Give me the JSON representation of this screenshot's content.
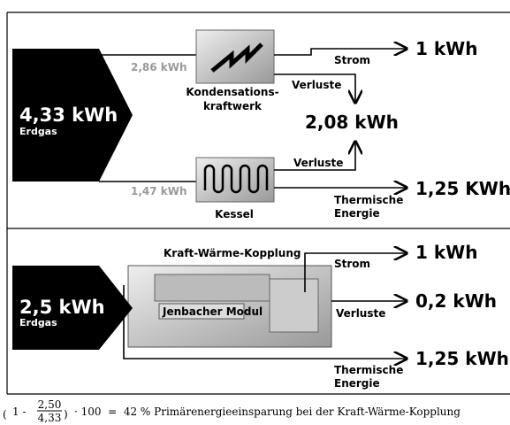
{
  "top": {
    "input": {
      "value": "4,33 kWh",
      "label": "Erdgas"
    },
    "plant": {
      "input": "2,86 kWh",
      "name": [
        "Kondensations-",
        "kraftwerk"
      ],
      "output_label": "Strom",
      "output": "1 kWh",
      "loss_label": "Verluste"
    },
    "losses_total": "2,08 kWh",
    "boiler": {
      "input": "1,47 kWh",
      "name": "Kessel",
      "loss_label": "Verluste",
      "output_label": [
        "Thermische",
        "Energie"
      ],
      "output": "1,25 KWh"
    }
  },
  "bottom": {
    "title": "Kraft-Wärme-Kopplung",
    "input": {
      "value": "2,5 kWh",
      "label": "Erdgas"
    },
    "module": "Jenbacher Modul",
    "outputs": [
      {
        "label": [
          "Strom"
        ],
        "value": "1 kWh"
      },
      {
        "label": [
          "Verluste"
        ],
        "value": "0,2 kWh"
      },
      {
        "label": [
          "Thermische",
          "Energie"
        ],
        "value": "1,25 kWh"
      }
    ]
  },
  "formula": {
    "prefix": "1 -",
    "numerator": "2,50",
    "denominator": "4,33",
    "text": "· 100  =  42 % Primärenergieeinsparung bei der Kraft-Wärme-Kopplung"
  }
}
